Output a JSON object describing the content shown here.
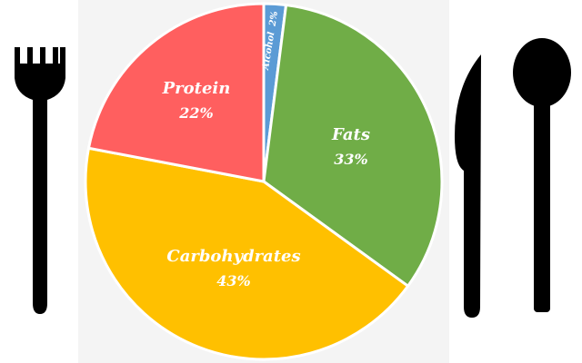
{
  "chart_data": {
    "type": "pie",
    "categories": [
      "Alcohol",
      "Fats",
      "Carbohydrates",
      "Protein"
    ],
    "values": [
      2,
      33,
      43,
      22
    ],
    "value_labels": [
      "2%",
      "33%",
      "43%",
      "22%"
    ],
    "colors": [
      "#5b9bd5",
      "#70ad47",
      "#ffc000",
      "#ff5f5f"
    ],
    "start": "top",
    "direction": "clockwise"
  },
  "decor": {
    "fork_icon": "fork-icon",
    "knife_icon": "knife-icon",
    "spoon_icon": "spoon-icon",
    "utensil_color": "#000000",
    "plate_background": "#f4f4f4"
  }
}
